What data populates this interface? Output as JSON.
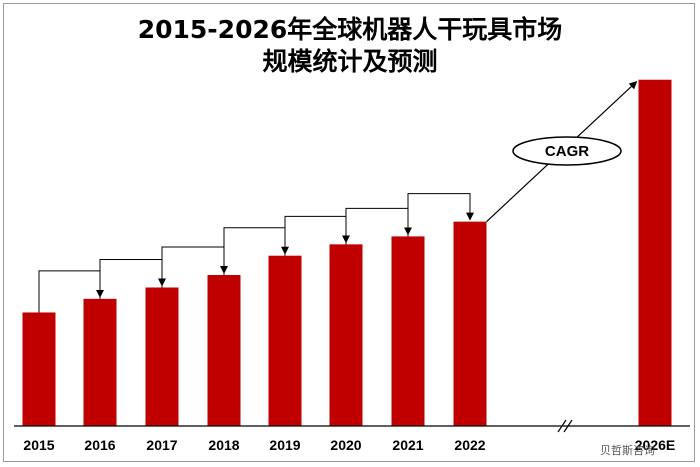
{
  "chart_data": {
    "type": "bar",
    "title_line1": "2015-2026年全球机器人干玩具市场",
    "title_line2": "规模统计及预测",
    "categories": [
      "2015",
      "2016",
      "2017",
      "2018",
      "2019",
      "2020",
      "2021",
      "2022",
      "2026E"
    ],
    "values": [
      100,
      112,
      122,
      133,
      150,
      160,
      167,
      180,
      305
    ],
    "ylim": [
      0,
      340
    ],
    "xlabel": "",
    "ylabel": "",
    "grid": false,
    "bar_color": "#c00000",
    "annotation": "CAGR",
    "axis_break": "//"
  },
  "watermark": "贝哲斯咨询"
}
